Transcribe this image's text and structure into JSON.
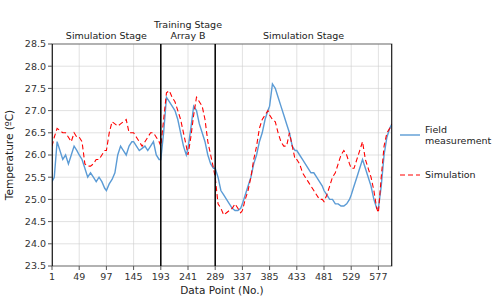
{
  "chart_data": {
    "type": "line",
    "xlabel": "Data Point (No.)",
    "ylabel": "Temperature (ºC)",
    "xlim": [
      1,
      601
    ],
    "ylim": [
      23.5,
      28.5
    ],
    "xticks": [
      1,
      49,
      97,
      145,
      193,
      241,
      289,
      337,
      385,
      433,
      481,
      529,
      577
    ],
    "yticks": [
      23.5,
      {
        "value": 24.0,
        "label": "24.0"
      },
      24.5,
      {
        "value": 25.0,
        "label": "25.0"
      },
      25.5,
      {
        "value": 26.0,
        "label": "26.0"
      },
      26.5,
      {
        "value": 27.0,
        "label": "27.0"
      },
      27.5,
      {
        "value": 28.0,
        "label": "28.0"
      },
      28.5
    ],
    "grid": true,
    "legend": "right",
    "vlines": [
      1,
      193,
      289,
      601
    ],
    "annotations": [
      {
        "text": "Simulation Stage",
        "x": 97,
        "y": 28.5
      },
      {
        "text": "Training Stage\nArray B",
        "x": 241,
        "y": 28.5
      },
      {
        "text": "Simulation Stage",
        "x": 445,
        "y": 28.5
      }
    ],
    "x": [
      1,
      5,
      10,
      15,
      20,
      25,
      30,
      35,
      40,
      45,
      49,
      54,
      59,
      64,
      69,
      74,
      79,
      84,
      89,
      94,
      97,
      102,
      107,
      112,
      117,
      122,
      127,
      132,
      137,
      142,
      145,
      150,
      155,
      160,
      165,
      170,
      175,
      180,
      185,
      190,
      193,
      198,
      203,
      208,
      213,
      218,
      223,
      228,
      233,
      238,
      241,
      246,
      251,
      256,
      261,
      266,
      271,
      276,
      281,
      286,
      289,
      294,
      299,
      304,
      309,
      314,
      319,
      324,
      329,
      334,
      337,
      342,
      347,
      352,
      357,
      362,
      367,
      372,
      377,
      382,
      385,
      390,
      395,
      400,
      405,
      410,
      415,
      420,
      425,
      430,
      433,
      438,
      443,
      448,
      453,
      458,
      463,
      468,
      473,
      478,
      481,
      486,
      491,
      496,
      501,
      506,
      511,
      516,
      521,
      526,
      529,
      534,
      539,
      544,
      549,
      554,
      559,
      564,
      569,
      574,
      577,
      582,
      587,
      592,
      597,
      601
    ],
    "series": [
      {
        "name": "Field\nmeasurement",
        "color": "#5B9BD5",
        "line_style": "solid",
        "values": [
          25.4,
          25.5,
          26.3,
          26.1,
          25.9,
          26.0,
          25.8,
          26.0,
          26.2,
          26.1,
          26.0,
          25.9,
          25.7,
          25.5,
          25.6,
          25.5,
          25.4,
          25.5,
          25.4,
          25.25,
          25.2,
          25.35,
          25.45,
          25.6,
          26.0,
          26.2,
          26.1,
          26.0,
          26.2,
          26.3,
          26.3,
          26.2,
          26.1,
          26.15,
          26.2,
          26.1,
          26.2,
          26.3,
          26.0,
          25.9,
          25.9,
          26.5,
          27.3,
          27.2,
          27.1,
          27.0,
          26.8,
          26.5,
          26.2,
          26.0,
          26.15,
          26.6,
          27.1,
          27.0,
          26.7,
          26.5,
          26.3,
          26.0,
          25.8,
          25.7,
          25.7,
          25.5,
          25.2,
          25.1,
          25.0,
          24.9,
          24.8,
          24.75,
          24.75,
          24.8,
          24.9,
          25.1,
          25.3,
          25.5,
          25.8,
          26.0,
          26.3,
          26.5,
          26.8,
          27.0,
          27.1,
          27.6,
          27.5,
          27.3,
          27.1,
          26.9,
          26.7,
          26.5,
          26.2,
          26.1,
          26.1,
          26.0,
          25.9,
          25.8,
          25.7,
          25.6,
          25.6,
          25.5,
          25.4,
          25.3,
          25.2,
          25.1,
          25.0,
          25.0,
          24.9,
          24.9,
          24.85,
          24.85,
          24.9,
          25.0,
          25.1,
          25.3,
          25.5,
          25.7,
          25.9,
          25.7,
          25.5,
          25.3,
          25.0,
          24.8,
          24.8,
          25.3,
          26.0,
          26.4,
          26.6,
          26.7
        ]
      },
      {
        "name": "Simulation",
        "color": "#FF0000",
        "line_style": "dashed",
        "values": [
          26.2,
          26.4,
          26.6,
          26.55,
          26.5,
          26.5,
          26.4,
          26.3,
          26.5,
          26.4,
          26.4,
          26.3,
          25.8,
          25.75,
          25.75,
          25.8,
          25.9,
          25.9,
          26.0,
          26.1,
          26.1,
          26.5,
          26.75,
          26.7,
          26.65,
          26.7,
          26.75,
          26.8,
          26.5,
          26.5,
          26.5,
          26.4,
          26.3,
          26.2,
          26.3,
          26.4,
          26.5,
          26.5,
          26.4,
          26.3,
          26.2,
          26.8,
          27.4,
          27.45,
          27.3,
          27.2,
          27.0,
          26.8,
          26.5,
          26.2,
          26.0,
          26.4,
          26.9,
          27.3,
          27.2,
          27.1,
          26.8,
          26.3,
          26.0,
          25.7,
          25.5,
          24.9,
          24.8,
          24.65,
          24.7,
          24.75,
          24.8,
          24.9,
          24.8,
          24.7,
          24.75,
          25.0,
          25.2,
          25.5,
          25.9,
          26.2,
          26.6,
          26.8,
          26.9,
          27.0,
          26.9,
          26.8,
          26.75,
          26.5,
          26.3,
          26.2,
          26.2,
          26.5,
          26.2,
          25.9,
          25.9,
          25.8,
          25.6,
          25.5,
          25.4,
          25.3,
          25.2,
          25.1,
          25.0,
          25.0,
          24.95,
          25.1,
          25.3,
          25.5,
          25.6,
          25.8,
          26.0,
          26.1,
          26.0,
          25.8,
          25.7,
          25.7,
          25.9,
          26.1,
          26.3,
          25.9,
          25.7,
          25.5,
          25.2,
          24.8,
          24.7,
          25.5,
          26.2,
          26.5,
          26.6,
          26.7
        ]
      }
    ]
  }
}
